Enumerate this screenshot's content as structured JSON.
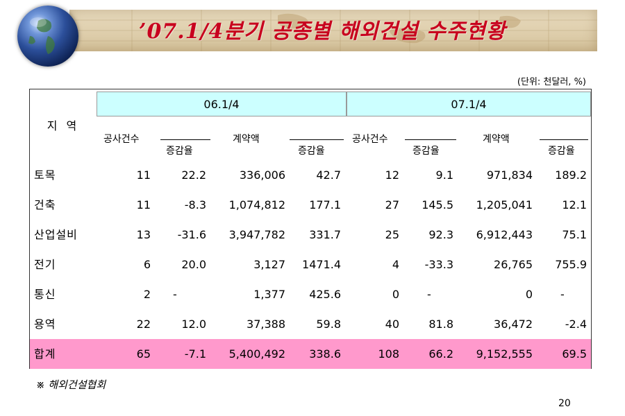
{
  "title": "’07.1/4분기 공종별 해외건설 수주현황",
  "unit_note": "(단위: 천달러, %)",
  "table": {
    "region_header": "지 역",
    "periods": [
      "06.1/4",
      "07.1/4"
    ],
    "subheaders": [
      "공사건수",
      "증감율",
      "계약액",
      "증감율",
      "공사건수",
      "증감율",
      "계약액",
      "증감율"
    ],
    "rows": [
      {
        "label": "토목",
        "values": [
          "11",
          "22.2",
          "336,006",
          "42.7",
          "12",
          "9.1",
          "971,834",
          "189.2"
        ]
      },
      {
        "label": "건축",
        "values": [
          "11",
          "-8.3",
          "1,074,812",
          "177.1",
          "27",
          "145.5",
          "1,205,041",
          "12.1"
        ]
      },
      {
        "label": "산업설비",
        "values": [
          "13",
          "-31.6",
          "3,947,782",
          "331.7",
          "25",
          "92.3",
          "6,912,443",
          "75.1"
        ]
      },
      {
        "label": "전기",
        "values": [
          "6",
          "20.0",
          "3,127",
          "1471.4",
          "4",
          "-33.3",
          "26,765",
          "755.9"
        ]
      },
      {
        "label": "통신",
        "values": [
          "2",
          "-",
          "1,377",
          "425.6",
          "0",
          "-",
          "0",
          "-"
        ]
      },
      {
        "label": "용역",
        "values": [
          "22",
          "12.0",
          "37,388",
          "59.8",
          "40",
          "81.8",
          "36,472",
          "-2.4"
        ]
      },
      {
        "label": "합계",
        "values": [
          "65",
          "-7.1",
          "5,400,492",
          "338.6",
          "108",
          "66.2",
          "9,152,555",
          "69.5"
        ]
      }
    ]
  },
  "source": "※ 해외건설협회",
  "page_number": "20",
  "colors": {
    "title": "#c8001e",
    "period_header_bg": "#ccffff",
    "total_row_bg": "#ff99cc"
  }
}
